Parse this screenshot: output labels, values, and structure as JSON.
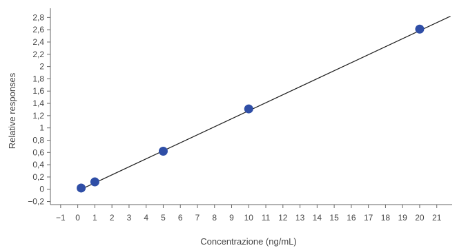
{
  "chart_data": {
    "type": "scatter",
    "title": "",
    "xlabel": "Concentrazione (ng/mL)",
    "ylabel": "Relative responses",
    "xlim": [
      -1.6,
      21.9
    ],
    "ylim": [
      -0.25,
      2.95
    ],
    "x_ticks": [
      -1,
      0,
      1,
      2,
      3,
      4,
      5,
      6,
      7,
      8,
      9,
      10,
      11,
      12,
      13,
      14,
      15,
      16,
      17,
      18,
      19,
      20,
      21
    ],
    "x_tick_labels": [
      "−1",
      "0",
      "1",
      "2",
      "3",
      "4",
      "5",
      "6",
      "7",
      "8",
      "9",
      "10",
      "11",
      "12",
      "13",
      "14",
      "15",
      "16",
      "17",
      "18",
      "19",
      "20",
      "21"
    ],
    "y_ticks": [
      -0.2,
      0,
      0.2,
      0.4,
      0.6,
      0.8,
      1,
      1.2,
      1.4,
      1.6,
      1.8,
      2,
      2.2,
      2.4,
      2.6,
      2.8
    ],
    "y_tick_labels": [
      "−0,2",
      "0",
      "0,2",
      "0,4",
      "0,6",
      "0,8",
      "1",
      "1,2",
      "1,4",
      "1,6",
      "1,8",
      "2",
      "2,2",
      "2,4",
      "2,6",
      "2,8"
    ],
    "grid": false,
    "series": [
      {
        "points": [
          {
            "x": 0.2,
            "y": 0.02
          },
          {
            "x": 1.0,
            "y": 0.12
          },
          {
            "x": 5.0,
            "y": 0.62
          },
          {
            "x": 10.0,
            "y": 1.31
          },
          {
            "x": 20.0,
            "y": 2.61
          }
        ]
      }
    ],
    "fit_line": {
      "x": [
        0.2,
        21.8
      ],
      "y": [
        0.0,
        2.82
      ]
    },
    "colors": {
      "marker": "#2f4ea6",
      "line": "#222222",
      "axis": "#666666",
      "text": "#444444"
    }
  }
}
